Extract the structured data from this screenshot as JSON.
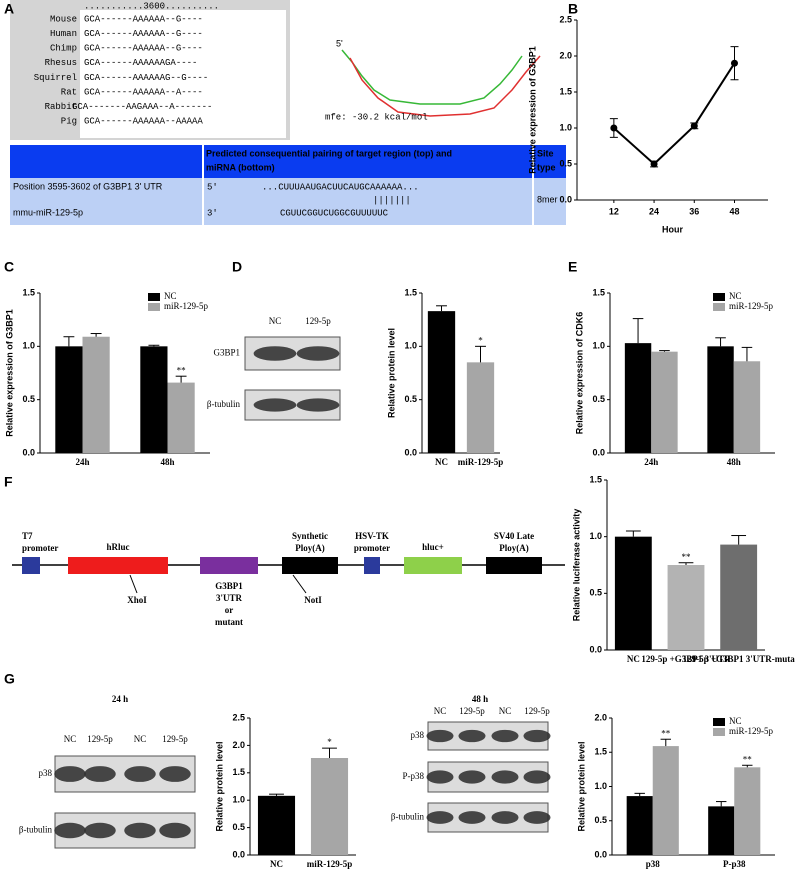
{
  "panel_labels": [
    "A",
    "B",
    "C",
    "D",
    "E",
    "F",
    "G"
  ],
  "alignment": {
    "ruler": "...........3600..........",
    "species": [
      "Mouse",
      "Human",
      "Chimp",
      "Rhesus",
      "Squirrel",
      "Rat",
      "Rabbit",
      "Pig"
    ],
    "species_colors": [
      "#2e9a2e",
      "#2a3bc8",
      "#2a3bc8",
      "#2a3bc8",
      "#2e9a2e",
      "#2a3bc8",
      "#2e9a2e",
      "#2a3bc8"
    ],
    "sequences": [
      "GCA------AAAAAA--G----",
      "GCA------AAAAAA--G----",
      "GCA------AAAAAA--G----",
      "GCA------AAAAAAGA----",
      "GCA------AAAAAAG--G----",
      "GCA------AAAAAA--A----",
      "GCA-------AAGAAA--A-------",
      "GCA------AAAAAA--AAAAA"
    ],
    "sequence_colors": [
      "#b030b0",
      "#444444",
      "#2a3bc8",
      "#7a6aa0",
      "#1a2aa8",
      "#333333",
      "#2a3bc8",
      "#888888"
    ]
  },
  "structure": {
    "end_label": "5'",
    "mfe": "mfe: -30.2 kcal/mol"
  },
  "target_table": {
    "header": [
      "Predicted consequential pairing of target region (top) and",
      "miRNA (bottom)"
    ],
    "site_header": [
      "Site",
      "type"
    ],
    "position": "Position 3595-3602 of G3BP1 3' UTR",
    "mirna": "mmu-miR-129-5p",
    "prime5": "5'",
    "prime3": "3'",
    "target_seq": "...CUUUAAUGACUUCAUGCAAAAAA...",
    "pairing": "|||||||",
    "mirna_seq": "CGUUCGGUCUGGCGUUUUUC",
    "site_type": "8mer"
  },
  "construct": {
    "elements": [
      {
        "label": [
          "T7",
          "promoter"
        ],
        "color": "#2b3a9c",
        "text_color": "#2b3a9c",
        "below": false
      },
      {
        "label": [
          "hRluc"
        ],
        "color": "#ee1c1c",
        "text_color": "#ee1c1c",
        "below": false
      },
      {
        "label": [
          "G3BP1",
          "3'UTR",
          "or",
          "mutant"
        ],
        "color": "#7a2f9e",
        "text_color": "#000000",
        "below": true
      },
      {
        "label": [
          "Synthetic",
          "Ploy(A)"
        ],
        "color": "#000000",
        "text_color": "#000000",
        "below": false
      },
      {
        "label": [
          "HSV-TK",
          "promoter"
        ],
        "color": "#2b3a9c",
        "text_color": "#2b3a9c",
        "below": false
      },
      {
        "label": [
          "hluc+"
        ],
        "color": "#8ed04a",
        "text_color": "#6cbf2a",
        "below": false
      },
      {
        "label": [
          "SV40 Late",
          "Ploy(A)"
        ],
        "color": "#000000",
        "text_color": "#000000",
        "below": false
      }
    ],
    "sites": [
      "XhoI",
      "NotI"
    ]
  },
  "blots": [
    {
      "lanes": [
        "NC",
        "129-5p"
      ],
      "rows": [
        "G3BP1",
        "β-tubulin"
      ]
    },
    {
      "title": "24 h",
      "lanes": [
        "NC",
        "129-5p",
        "NC",
        "129-5p"
      ],
      "rows": [
        "p38",
        "β-tubulin"
      ]
    },
    {
      "title": "48 h",
      "lanes": [
        "NC",
        "129-5p",
        "NC",
        "129-5p"
      ],
      "rows": [
        "p38",
        "P-p38",
        "β-tubulin"
      ]
    }
  ],
  "chart_data": [
    {
      "type": "line",
      "x": [
        12,
        24,
        36,
        48
      ],
      "values": [
        1.0,
        0.5,
        1.03,
        1.9
      ],
      "errors": [
        0.13,
        0.04,
        0.04,
        0.23
      ],
      "color": "#000000",
      "xlim": [
        1,
        58
      ],
      "xticks": [
        12,
        24,
        36,
        48
      ],
      "ylim": [
        0,
        2.5
      ],
      "yticks": [
        {
          "value": 0,
          "label": "0.0"
        },
        0.5,
        {
          "value": 1,
          "label": "1.0"
        },
        1.5,
        {
          "value": 2,
          "label": "2.0"
        },
        2.5
      ],
      "x_label": "Hour",
      "y_label": "Relative expression of G3BP1"
    },
    {
      "type": "bar",
      "categories": [
        "24h",
        "48h"
      ],
      "legend": "upper right",
      "series": [
        {
          "name": "NC",
          "color": "#000000",
          "values": [
            1.0,
            1.0
          ],
          "errors": [
            0.09,
            0.01
          ],
          "significance": [
            null,
            null
          ]
        },
        {
          "name": "miR-129-5p",
          "color": "#a6a6a6",
          "values": [
            1.09,
            0.66
          ],
          "errors": [
            0.03,
            0.06
          ],
          "significance": [
            null,
            "**"
          ]
        }
      ],
      "ylim": [
        0,
        1.5
      ],
      "yticks": [
        {
          "value": 0,
          "label": "0.0"
        },
        0.5,
        {
          "value": 1,
          "label": "1.0"
        },
        1.5
      ],
      "y_label": "Relative expression of G3BP1"
    },
    {
      "type": "bar",
      "categories": [
        "NC",
        "miR-129-5p"
      ],
      "values": [
        1.33,
        0.85
      ],
      "errors": [
        0.05,
        0.15
      ],
      "significance": [
        null,
        "*"
      ],
      "colors": [
        "#000000",
        "#a6a6a6"
      ],
      "ylim": [
        0,
        1.5
      ],
      "yticks": [
        {
          "value": 0,
          "label": "0.0"
        },
        0.5,
        {
          "value": 1,
          "label": "1.0"
        },
        1.5
      ],
      "y_label": "Relative protein level"
    },
    {
      "type": "bar",
      "categories": [
        "24h",
        "48h"
      ],
      "legend": "upper right",
      "series": [
        {
          "name": "NC",
          "color": "#000000",
          "values": [
            1.03,
            1.0
          ],
          "errors": [
            0.23,
            0.08
          ],
          "significance": [
            null,
            null
          ]
        },
        {
          "name": "miR-129-5p",
          "color": "#a6a6a6",
          "values": [
            0.95,
            0.86
          ],
          "errors": [
            0.01,
            0.13
          ],
          "significance": [
            null,
            null
          ]
        }
      ],
      "ylim": [
        0,
        1.5
      ],
      "yticks": [
        {
          "value": 0,
          "label": "0.0"
        },
        0.5,
        {
          "value": 1,
          "label": "1.0"
        },
        1.5
      ],
      "y_label": "Relative expression of CDK6"
    },
    {
      "type": "bar",
      "categories": [
        "NC",
        "129-5p +G3BP1 3'UTR",
        "129-5p +G3BP1 3'UTR-muta"
      ],
      "values": [
        1.0,
        0.75,
        0.93
      ],
      "errors": [
        0.05,
        0.02,
        0.08
      ],
      "significance": [
        null,
        "**",
        null
      ],
      "colors": [
        "#000000",
        "#b3b3b3",
        "#6e6e6e"
      ],
      "ylim": [
        0,
        1.5
      ],
      "yticks": [
        {
          "value": 0,
          "label": "0.0"
        },
        0.5,
        {
          "value": 1,
          "label": "1.0"
        },
        1.5
      ],
      "y_label": "Relative luciferase activity"
    },
    {
      "type": "bar",
      "categories": [
        "NC",
        "miR-129-5p"
      ],
      "values": [
        1.08,
        1.77
      ],
      "errors": [
        0.03,
        0.18
      ],
      "significance": [
        null,
        "*"
      ],
      "colors": [
        "#000000",
        "#a6a6a6"
      ],
      "ylim": [
        0,
        2.5
      ],
      "yticks": [
        {
          "value": 0,
          "label": "0.0"
        },
        0.5,
        {
          "value": 1,
          "label": "1.0"
        },
        1.5,
        {
          "value": 2,
          "label": "2.0"
        },
        2.5
      ],
      "y_label": "Relative protein level"
    },
    {
      "type": "bar",
      "categories": [
        "p38",
        "P-p38"
      ],
      "legend": "upper right",
      "series": [
        {
          "name": "NC",
          "color": "#000000",
          "values": [
            0.86,
            0.71
          ],
          "errors": [
            0.04,
            0.07
          ],
          "significance": [
            null,
            null
          ]
        },
        {
          "name": "miR-129-5p",
          "color": "#a6a6a6",
          "values": [
            1.59,
            1.28
          ],
          "errors": [
            0.1,
            0.03
          ],
          "significance": [
            "**",
            "**"
          ]
        }
      ],
      "ylim": [
        0,
        2.0
      ],
      "yticks": [
        {
          "value": 0,
          "label": "0.0"
        },
        0.5,
        {
          "value": 1,
          "label": "1.0"
        },
        1.5,
        {
          "value": 2,
          "label": "2.0"
        }
      ],
      "y_label": "Relative protein level"
    }
  ]
}
